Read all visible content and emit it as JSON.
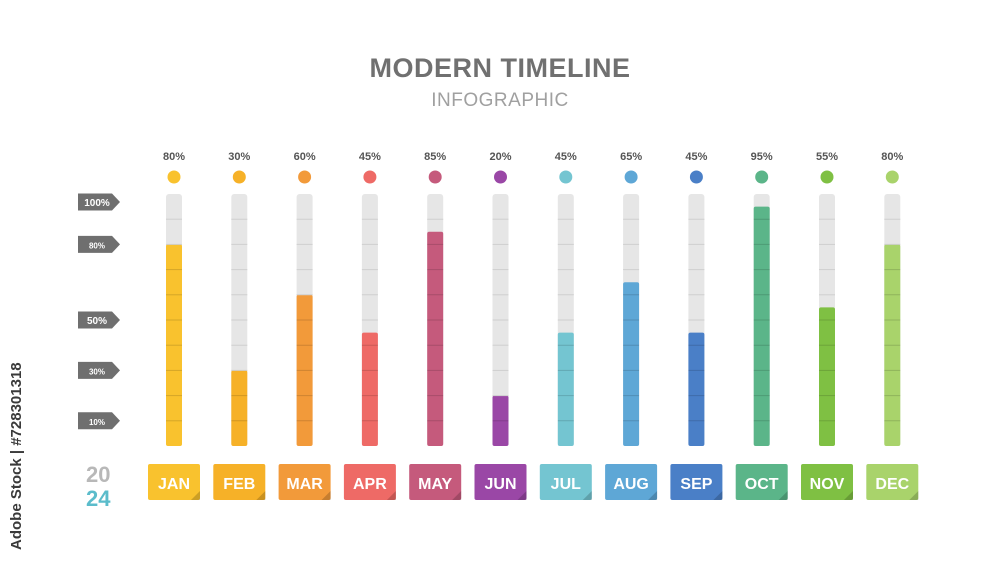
{
  "header": {
    "title": "MODERN TIMELINE",
    "subtitle": "INFOGRAPHIC"
  },
  "year": {
    "top": "20",
    "bottom": "24"
  },
  "watermark": "Adobe Stock | #728301318",
  "chart_data": {
    "type": "bar",
    "title": "MODERN TIMELINE",
    "subtitle": "INFOGRAPHIC",
    "categories": [
      "JAN",
      "FEB",
      "MAR",
      "APR",
      "MAY",
      "JUN",
      "JUL",
      "AUG",
      "SEP",
      "OCT",
      "NOV",
      "DEC"
    ],
    "values": [
      80,
      30,
      60,
      45,
      85,
      20,
      45,
      65,
      45,
      95,
      55,
      80
    ],
    "value_labels": [
      "80%",
      "30%",
      "60%",
      "45%",
      "85%",
      "20%",
      "45%",
      "65%",
      "45%",
      "95%",
      "55%",
      "80%"
    ],
    "colors": [
      "#f9c22e",
      "#f6b128",
      "#f29a3a",
      "#ee6a66",
      "#c55a7c",
      "#9a47a6",
      "#74c5d1",
      "#5ea7d6",
      "#4a7fc7",
      "#5bb589",
      "#7fc043",
      "#a9d36b"
    ],
    "axis_ticks": [
      {
        "value": 100,
        "label": "100%"
      },
      {
        "value": 80,
        "label": "80%"
      },
      {
        "value": 50,
        "label": "50%"
      },
      {
        "value": 30,
        "label": "30%"
      },
      {
        "value": 10,
        "label": "10%"
      }
    ],
    "ylim": [
      0,
      100
    ],
    "xlabel": "",
    "ylabel": "",
    "grid": false,
    "legend": "none"
  }
}
